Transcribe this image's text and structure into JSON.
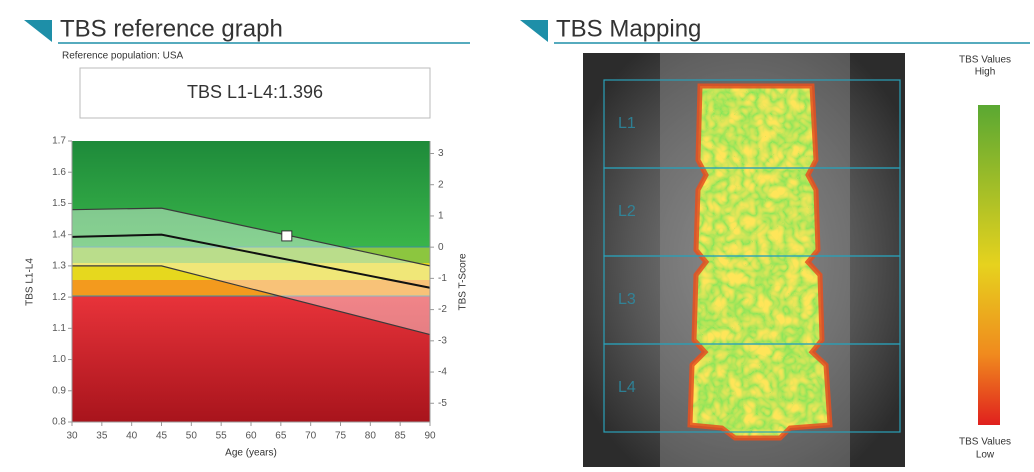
{
  "left_panel": {
    "title": "TBS reference graph",
    "subtitle": "Reference population: USA",
    "result": "TBS L1-L4:1.396"
  },
  "chart_data": {
    "type": "line",
    "x_label": "Age (years)",
    "y_label": "TBS L1-L4",
    "y2_label": "TBS T-Score",
    "x": [
      30,
      45,
      90
    ],
    "series": [
      {
        "color": "#3a3a3a",
        "values": [
          1.48,
          1.485,
          1.3
        ]
      },
      {
        "color": "#111111",
        "values": [
          1.393,
          1.4,
          1.23
        ]
      },
      {
        "color": "#3a3a3a",
        "values": [
          1.3,
          1.3,
          1.08
        ]
      }
    ],
    "point": {
      "x": 66,
      "y": 1.396,
      "color": "#ffffff"
    },
    "xlim": [
      30,
      90
    ],
    "xticks": [
      30,
      35,
      40,
      45,
      50,
      55,
      60,
      65,
      70,
      75,
      80,
      85,
      90
    ],
    "ylim": [
      0.8,
      1.7
    ],
    "yticks": [
      0.8,
      0.9,
      {
        "value": 1,
        "label": "1.0"
      },
      1.1,
      1.2,
      1.3,
      1.4,
      1.5,
      1.6,
      1.7
    ],
    "y2lim": [
      -5.6,
      3.4
    ],
    "y2ticks": [
      -5,
      -4,
      -3,
      -2,
      -1,
      0,
      1,
      2,
      3
    ]
  },
  "right_panel": {
    "title": "TBS Mapping",
    "vertebrae": [
      "L1",
      "L2",
      "L3",
      "L4"
    ],
    "legend_high": [
      "TBS Values",
      "High"
    ],
    "legend_low": [
      "TBS Values",
      "Low"
    ]
  }
}
